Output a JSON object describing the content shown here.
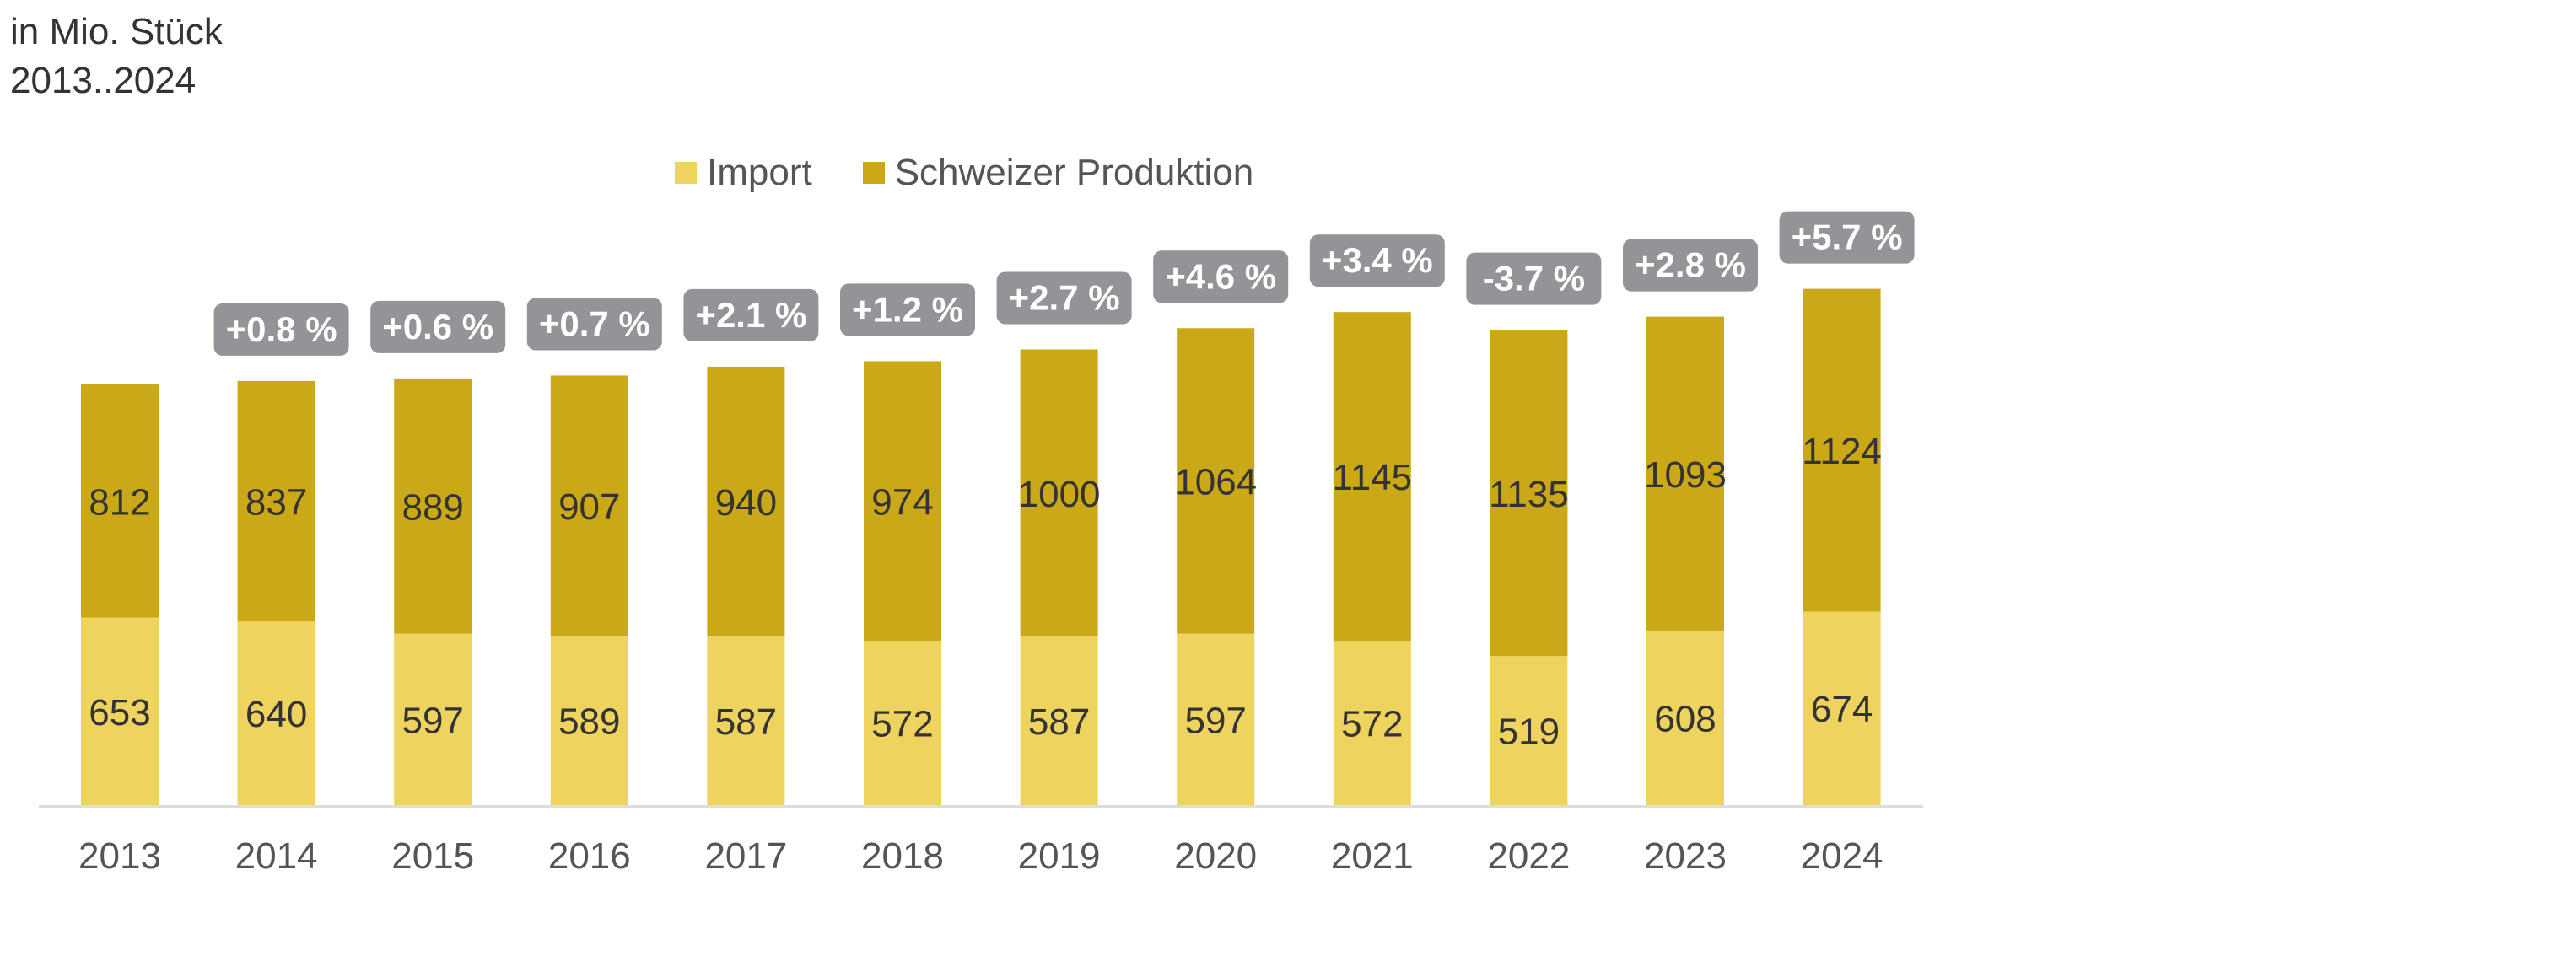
{
  "header": {
    "unit_label": "in Mio. Stück",
    "range_label": "2013..2024"
  },
  "chart_data": {
    "type": "bar",
    "stacked": true,
    "title": "",
    "subtitle": [
      "in Mio. Stück",
      "2013..2024"
    ],
    "xlabel": "",
    "ylabel": "",
    "ylim": [
      0,
      1850
    ],
    "grid": false,
    "legend_position": "top-center",
    "categories": [
      "2013",
      "2014",
      "2015",
      "2016",
      "2017",
      "2018",
      "2019",
      "2020",
      "2021",
      "2022",
      "2023",
      "2024"
    ],
    "series": [
      {
        "name": "Import",
        "color": "#EED35F",
        "values": [
          653,
          640,
          597,
          589,
          587,
          572,
          587,
          597,
          572,
          519,
          608,
          674
        ]
      },
      {
        "name": "Schweizer Produktion",
        "color": "#CAA817",
        "values": [
          812,
          837,
          889,
          907,
          940,
          974,
          1000,
          1064,
          1145,
          1135,
          1093,
          1124
        ]
      }
    ],
    "annotations": {
      "type": "change-badge",
      "color": "#939497",
      "labels": [
        null,
        "+0.8 %",
        "+0.6 %",
        "+0.7 %",
        "+2.1 %",
        "+1.2 %",
        "+2.7 %",
        "+4.6 %",
        "+3.4 %",
        "-3.7 %",
        "+2.8 %",
        "+5.7 %"
      ]
    }
  }
}
